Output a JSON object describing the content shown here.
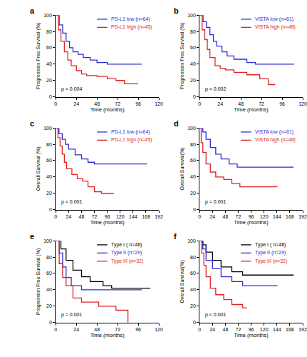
{
  "chart_data": [
    {
      "type": "line",
      "title": "a",
      "x_label": "Time (months)",
      "y_label": "Progression Free Survival (%)",
      "xlim": [
        0,
        120
      ],
      "xticks": [
        0,
        24,
        48,
        72,
        96,
        120
      ],
      "ylim": [
        0,
        100
      ],
      "yticks": [
        0,
        20,
        40,
        60,
        80,
        100
      ],
      "grid": false,
      "legend": "upper right",
      "line_style": "step",
      "annotation": "p = 0.004",
      "series": [
        {
          "name": "PD-L1 low (n=64)",
          "color": "#2b2bd9",
          "x": [
            0,
            4,
            8,
            12,
            16,
            20,
            26,
            32,
            40,
            48,
            60,
            72,
            100
          ],
          "values": [
            100,
            88,
            78,
            68,
            60,
            55,
            52,
            48,
            45,
            42,
            40,
            40,
            40
          ]
        },
        {
          "name": "PD-L1 high (n=45)",
          "color": "#e02424",
          "x": [
            0,
            3,
            6,
            10,
            14,
            18,
            24,
            30,
            36,
            48,
            60,
            70,
            80,
            96
          ],
          "values": [
            100,
            82,
            68,
            55,
            45,
            38,
            32,
            28,
            26,
            25,
            22,
            20,
            16,
            16
          ]
        }
      ]
    },
    {
      "type": "line",
      "title": "b",
      "x_label": "Time (months)",
      "y_label": "Progression Free Survival (%)",
      "xlim": [
        0,
        120
      ],
      "xticks": [
        0,
        24,
        48,
        72,
        96,
        120
      ],
      "ylim": [
        0,
        100
      ],
      "yticks": [
        0,
        20,
        40,
        60,
        80,
        100
      ],
      "grid": false,
      "legend": "upper right",
      "line_style": "step",
      "annotation": "p = 0.002",
      "series": [
        {
          "name": "VISTA low (n=61)",
          "color": "#2b2bd9",
          "x": [
            0,
            4,
            8,
            12,
            16,
            20,
            26,
            32,
            40,
            55,
            65,
            110
          ],
          "values": [
            100,
            92,
            85,
            76,
            68,
            62,
            55,
            50,
            46,
            42,
            40,
            40
          ]
        },
        {
          "name": "VISTA high (n=48)",
          "color": "#e02424",
          "x": [
            0,
            3,
            6,
            9,
            12,
            18,
            24,
            30,
            40,
            55,
            70,
            80,
            88
          ],
          "values": [
            100,
            82,
            70,
            58,
            48,
            38,
            35,
            33,
            30,
            27,
            22,
            15,
            15
          ]
        }
      ]
    },
    {
      "type": "line",
      "title": "c",
      "x_label": "Time (months)",
      "y_label": "Overall Survival (%)",
      "xlim": [
        0,
        192
      ],
      "xticks": [
        0,
        24,
        48,
        72,
        96,
        120,
        144,
        168,
        192
      ],
      "ylim": [
        0,
        100
      ],
      "yticks": [
        0,
        20,
        40,
        60,
        80,
        100
      ],
      "grid": false,
      "legend": "upper right",
      "line_style": "step",
      "annotation": "p < 0.001",
      "series": [
        {
          "name": "PD-L1 low (n=64)",
          "color": "#2b2bd9",
          "x": [
            0,
            6,
            12,
            18,
            24,
            36,
            48,
            60,
            72,
            170
          ],
          "values": [
            100,
            93,
            86,
            80,
            74,
            67,
            62,
            58,
            56,
            56
          ]
        },
        {
          "name": "PD-L1 high (n=45)",
          "color": "#e02424",
          "x": [
            0,
            4,
            8,
            12,
            16,
            20,
            30,
            40,
            50,
            60,
            72,
            85,
            108
          ],
          "values": [
            100,
            88,
            78,
            68,
            58,
            50,
            43,
            38,
            35,
            28,
            22,
            20,
            20
          ]
        }
      ]
    },
    {
      "type": "line",
      "title": "d",
      "x_label": "Time (months)",
      "y_label": "Overall Survival(%)",
      "xlim": [
        0,
        192
      ],
      "xticks": [
        0,
        24,
        48,
        72,
        96,
        120,
        144,
        168,
        192
      ],
      "ylim": [
        0,
        100
      ],
      "yticks": [
        0,
        20,
        40,
        60,
        80,
        100
      ],
      "grid": false,
      "legend": "upper right",
      "line_style": "step",
      "annotation": "p = 0.001",
      "series": [
        {
          "name": "VISTA low (n=61)",
          "color": "#2b2bd9",
          "x": [
            0,
            6,
            12,
            20,
            30,
            40,
            55,
            70,
            175
          ],
          "values": [
            100,
            95,
            86,
            76,
            68,
            62,
            56,
            52,
            52
          ]
        },
        {
          "name": "VISTA high (n=48)",
          "color": "#e02424",
          "x": [
            0,
            3,
            6,
            12,
            20,
            30,
            45,
            60,
            75,
            145
          ],
          "values": [
            100,
            82,
            70,
            56,
            46,
            40,
            37,
            32,
            28,
            28
          ]
        }
      ]
    },
    {
      "type": "line",
      "title": "e",
      "x_label": "Time (months)",
      "y_label": "Progression Free Survival (%)",
      "xlim": [
        0,
        120
      ],
      "xticks": [
        0,
        24,
        48,
        72,
        96,
        120
      ],
      "ylim": [
        0,
        100
      ],
      "yticks": [
        0,
        20,
        40,
        60,
        80,
        100
      ],
      "grid": false,
      "legend": "upper right",
      "line_style": "step",
      "annotation": "p = 0.001",
      "series": [
        {
          "name": "Type I ( n=48)",
          "color": "#000000",
          "x": [
            0,
            6,
            12,
            20,
            30,
            40,
            55,
            65,
            110
          ],
          "values": [
            100,
            90,
            76,
            64,
            56,
            50,
            45,
            42,
            42
          ]
        },
        {
          "name": "Type II (n=29)",
          "color": "#2b2bd9",
          "x": [
            0,
            4,
            8,
            12,
            18,
            30,
            100
          ],
          "values": [
            100,
            85,
            68,
            55,
            45,
            40,
            40
          ]
        },
        {
          "name": "Type III (n=32)",
          "color": "#e02424",
          "x": [
            0,
            4,
            8,
            12,
            20,
            30,
            50,
            70,
            84
          ],
          "values": [
            100,
            72,
            55,
            45,
            30,
            25,
            20,
            15,
            0
          ]
        }
      ]
    },
    {
      "type": "line",
      "title": "f",
      "x_label": "Time (months)",
      "y_label": "Overall Survival(%)",
      "xlim": [
        0,
        192
      ],
      "xticks": [
        0,
        24,
        48,
        72,
        96,
        120,
        144,
        168,
        192
      ],
      "ylim": [
        0,
        100
      ],
      "yticks": [
        0,
        20,
        40,
        60,
        80,
        100
      ],
      "grid": false,
      "legend": "upper right",
      "line_style": "step",
      "annotation": "p < 0.001",
      "series": [
        {
          "name": "Type I ( n=48)",
          "color": "#000000",
          "x": [
            0,
            6,
            12,
            24,
            40,
            60,
            80,
            175
          ],
          "values": [
            100,
            95,
            86,
            76,
            68,
            62,
            58,
            58
          ]
        },
        {
          "name": "Type II (n=29)",
          "color": "#2b2bd9",
          "x": [
            0,
            6,
            12,
            24,
            40,
            60,
            80,
            145
          ],
          "values": [
            100,
            90,
            76,
            66,
            56,
            50,
            45,
            45
          ]
        },
        {
          "name": "Type III (n=32)",
          "color": "#e02424",
          "x": [
            0,
            4,
            8,
            12,
            20,
            30,
            45,
            60,
            80,
            88
          ],
          "values": [
            100,
            85,
            70,
            56,
            42,
            34,
            28,
            22,
            18,
            18
          ]
        }
      ]
    }
  ]
}
